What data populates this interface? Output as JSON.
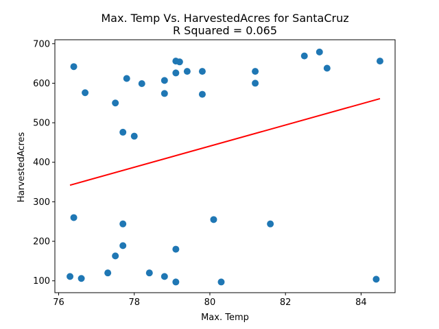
{
  "chart_data": {
    "type": "scatter",
    "title": "Max. Temp Vs. HarvestedAcres for SantaCruz",
    "subtitle": "R Squared =  0.065",
    "xlabel": "Max. Temp",
    "ylabel": "HarvestedAcres",
    "xlim": [
      75.9,
      84.9
    ],
    "ylim": [
      70,
      710
    ],
    "xticks": [
      76,
      78,
      80,
      82,
      84
    ],
    "yticks": [
      100,
      200,
      300,
      400,
      500,
      600,
      700
    ],
    "grid": false,
    "legend": "none",
    "point_color": "#1f77b4",
    "line_color": "#ff0000",
    "points": [
      {
        "x": 76.3,
        "y": 111
      },
      {
        "x": 76.4,
        "y": 642
      },
      {
        "x": 76.4,
        "y": 260
      },
      {
        "x": 76.6,
        "y": 106
      },
      {
        "x": 76.7,
        "y": 576
      },
      {
        "x": 77.3,
        "y": 120
      },
      {
        "x": 77.5,
        "y": 550
      },
      {
        "x": 77.5,
        "y": 163
      },
      {
        "x": 77.7,
        "y": 476
      },
      {
        "x": 77.7,
        "y": 244
      },
      {
        "x": 77.7,
        "y": 189
      },
      {
        "x": 77.8,
        "y": 612
      },
      {
        "x": 78.0,
        "y": 466
      },
      {
        "x": 78.2,
        "y": 599
      },
      {
        "x": 78.4,
        "y": 120
      },
      {
        "x": 78.8,
        "y": 607
      },
      {
        "x": 78.8,
        "y": 574
      },
      {
        "x": 78.8,
        "y": 111
      },
      {
        "x": 79.1,
        "y": 656
      },
      {
        "x": 79.1,
        "y": 626
      },
      {
        "x": 79.1,
        "y": 180
      },
      {
        "x": 79.1,
        "y": 97
      },
      {
        "x": 79.2,
        "y": 654
      },
      {
        "x": 79.4,
        "y": 630
      },
      {
        "x": 79.8,
        "y": 630
      },
      {
        "x": 79.8,
        "y": 572
      },
      {
        "x": 80.1,
        "y": 255
      },
      {
        "x": 80.3,
        "y": 97
      },
      {
        "x": 81.2,
        "y": 630
      },
      {
        "x": 81.2,
        "y": 600
      },
      {
        "x": 81.6,
        "y": 244
      },
      {
        "x": 82.5,
        "y": 669
      },
      {
        "x": 82.9,
        "y": 679
      },
      {
        "x": 83.1,
        "y": 638
      },
      {
        "x": 84.4,
        "y": 104
      },
      {
        "x": 84.5,
        "y": 656
      }
    ],
    "regression_line": {
      "x": [
        76.3,
        84.5
      ],
      "y": [
        342,
        561
      ]
    }
  }
}
